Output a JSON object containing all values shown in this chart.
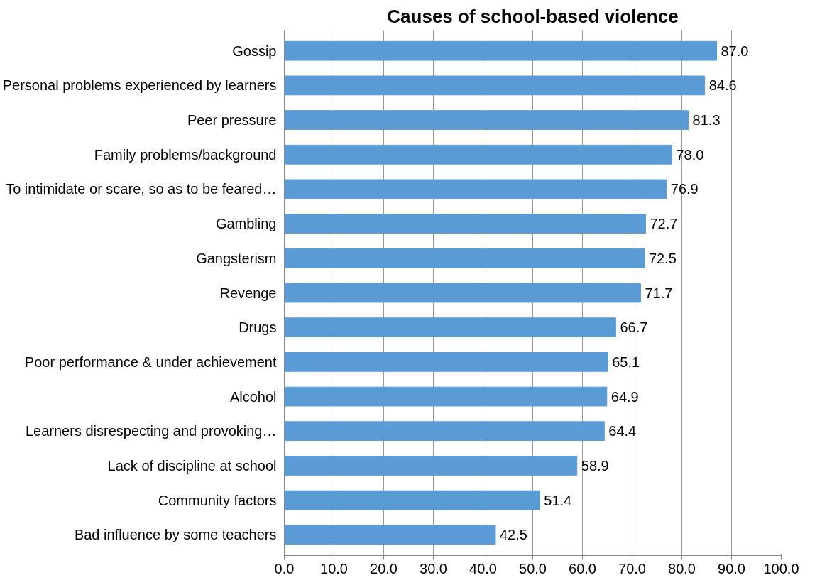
{
  "chart_data": {
    "type": "bar",
    "orientation": "horizontal",
    "title": "Causes of school-based violence",
    "categories": [
      "Gossip",
      "Personal problems experienced by learners",
      "Peer pressure",
      "Family problems/background",
      "To intimidate or scare, so as to be feared…",
      "Gambling",
      "Gangsterism",
      "Revenge",
      "Drugs",
      "Poor performance & under achievement",
      "Alcohol",
      "Learners disrespecting and provoking…",
      "Lack of discipline at school",
      "Community factors",
      "Bad influence by some teachers"
    ],
    "values": [
      87.0,
      84.6,
      81.3,
      78.0,
      76.9,
      72.7,
      72.5,
      71.7,
      66.7,
      65.1,
      64.9,
      64.4,
      58.9,
      51.4,
      42.5
    ],
    "value_labels": [
      "87.0",
      "84.6",
      "81.3",
      "78.0",
      "76.9",
      "72.7",
      "72.5",
      "71.7",
      "66.7",
      "65.1",
      "64.9",
      "64.4",
      "58.9",
      "51.4",
      "42.5"
    ],
    "color": "#5b9bd5",
    "grid": "x",
    "xlim": [
      0,
      100
    ],
    "xticks": [
      {
        "value": 0,
        "label": "0.0"
      },
      {
        "value": 10,
        "label": "10.0"
      },
      {
        "value": 20,
        "label": "20.0"
      },
      {
        "value": 30,
        "label": "30.0"
      },
      {
        "value": 40,
        "label": "40.0"
      },
      {
        "value": 50,
        "label": "50.0"
      },
      {
        "value": 60,
        "label": "60.0"
      },
      {
        "value": 70,
        "label": "70.0"
      },
      {
        "value": 80,
        "label": "80.0"
      },
      {
        "value": 90,
        "label": "90.0"
      },
      {
        "value": 100,
        "label": "100.0"
      }
    ]
  }
}
